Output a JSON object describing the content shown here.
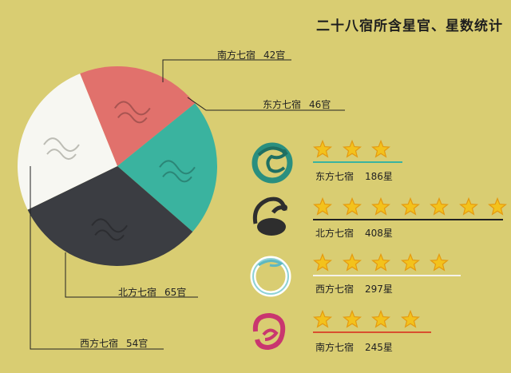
{
  "title": "二十八宿所含星官、星数统计",
  "chart_data": [
    {
      "type": "pie",
      "title": "",
      "slices": [
        {
          "name": "南方七宿",
          "value": 42,
          "unit": "官",
          "color": "#e1716c"
        },
        {
          "name": "东方七宿",
          "value": 46,
          "unit": "官",
          "color": "#3ab39f"
        },
        {
          "name": "北方七宿",
          "value": 65,
          "unit": "官",
          "color": "#3b3d42"
        },
        {
          "name": "西方七宿",
          "value": 54,
          "unit": "官",
          "color": "#f7f7f2"
        }
      ]
    },
    {
      "type": "bar",
      "title": "",
      "categories": [
        "东方七宿",
        "北方七宿",
        "西方七宿",
        "南方七宿"
      ],
      "values": [
        186,
        408,
        297,
        245
      ],
      "unit": "星",
      "stars": [
        3,
        7,
        5,
        4
      ],
      "underline_colors": [
        "#3ab39f",
        "#222222",
        "#f4f2ea",
        "#d94f2f"
      ],
      "emblem_colors": [
        "#2a8f7f",
        "#2e2e2e",
        "#8fd2d6",
        "#c9366f"
      ]
    }
  ],
  "pie_labels": {
    "south": {
      "name": "南方七宿",
      "count": "42官"
    },
    "east": {
      "name": "东方七宿",
      "count": "46官"
    },
    "north": {
      "name": "北方七宿",
      "count": "65官"
    },
    "west": {
      "name": "西方七宿",
      "count": "54官"
    }
  },
  "rows": [
    {
      "name": "东方七宿",
      "count": "186星"
    },
    {
      "name": "北方七宿",
      "count": "408星"
    },
    {
      "name": "西方七宿",
      "count": "297星"
    },
    {
      "name": "南方七宿",
      "count": "245星"
    }
  ],
  "icons": {
    "star": "star-icon",
    "east": "dragon-emblem-icon",
    "north": "turtle-snake-emblem-icon",
    "west": "tiger-emblem-icon",
    "south": "bird-emblem-icon"
  }
}
